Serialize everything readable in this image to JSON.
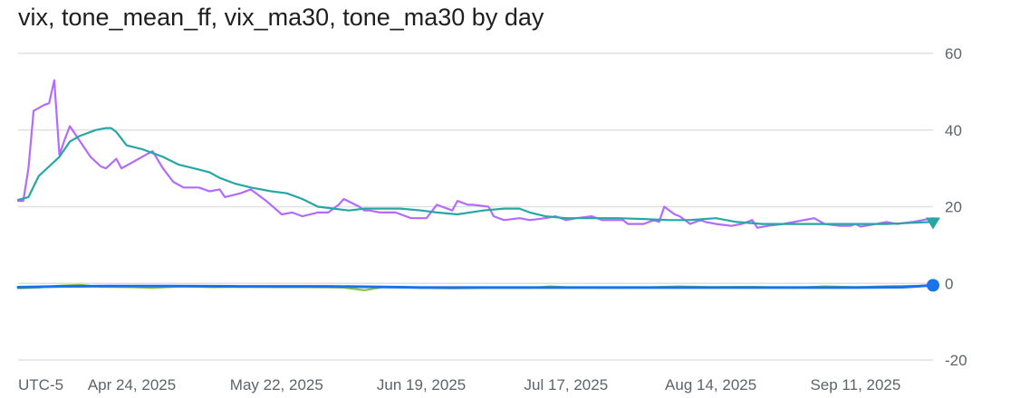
{
  "title": "vix, tone_mean_ff, vix_ma30, tone_ma30 by day",
  "timezone_label": "UTC-5",
  "colors": {
    "vix": "#b36bff",
    "tone_mean_ff": "#8bc34a",
    "vix_ma30": "#26a6a6",
    "tone_ma30": "#1a73e8",
    "grid": "#e0e0e0",
    "tick_text": "#5f6368",
    "title_text": "#1f1f1f"
  },
  "chart_data": {
    "type": "line",
    "title": "vix, tone_mean_ff, vix_ma30, tone_ma30 by day",
    "xlabel": "",
    "ylabel": "",
    "x_range": [
      "2025-04-02",
      "2025-09-26"
    ],
    "ylim": [
      -20,
      60
    ],
    "y_ticks": [
      60,
      40,
      20,
      0,
      -20
    ],
    "y_axis_position": "right",
    "x_ticks": [
      {
        "date": "2025-04-24",
        "label": "Apr 24, 2025"
      },
      {
        "date": "2025-05-22",
        "label": "May 22, 2025"
      },
      {
        "date": "2025-06-19",
        "label": "Jun 19, 2025"
      },
      {
        "date": "2025-07-17",
        "label": "Jul 17, 2025"
      },
      {
        "date": "2025-08-14",
        "label": "Aug 14, 2025"
      },
      {
        "date": "2025-09-11",
        "label": "Sep 11, 2025"
      }
    ],
    "grid": true,
    "legend": "none",
    "series": [
      {
        "name": "vix",
        "color": "#b36bff",
        "end_marker": "none",
        "points": [
          [
            "2025-04-02",
            21.5
          ],
          [
            "2025-04-03",
            21.5
          ],
          [
            "2025-04-04",
            30.0
          ],
          [
            "2025-04-05",
            45.0
          ],
          [
            "2025-04-07",
            46.5
          ],
          [
            "2025-04-08",
            47.0
          ],
          [
            "2025-04-09",
            53.0
          ],
          [
            "2025-04-10",
            33.5
          ],
          [
            "2025-04-11",
            37.5
          ],
          [
            "2025-04-12",
            41.0
          ],
          [
            "2025-04-14",
            37.0
          ],
          [
            "2025-04-16",
            33.0
          ],
          [
            "2025-04-18",
            30.5
          ],
          [
            "2025-04-19",
            30.0
          ],
          [
            "2025-04-21",
            32.5
          ],
          [
            "2025-04-22",
            30.0
          ],
          [
            "2025-04-24",
            31.5
          ],
          [
            "2025-04-28",
            34.5
          ],
          [
            "2025-04-30",
            30.0
          ],
          [
            "2025-05-02",
            26.5
          ],
          [
            "2025-05-04",
            25.0
          ],
          [
            "2025-05-07",
            25.0
          ],
          [
            "2025-05-09",
            24.0
          ],
          [
            "2025-05-11",
            24.5
          ],
          [
            "2025-05-12",
            22.5
          ],
          [
            "2025-05-15",
            23.5
          ],
          [
            "2025-05-17",
            24.5
          ],
          [
            "2025-05-20",
            21.5
          ],
          [
            "2025-05-23",
            18.0
          ],
          [
            "2025-05-25",
            18.5
          ],
          [
            "2025-05-27",
            17.5
          ],
          [
            "2025-05-30",
            18.5
          ],
          [
            "2025-06-01",
            18.5
          ],
          [
            "2025-06-02",
            19.5
          ],
          [
            "2025-06-03",
            20.5
          ],
          [
            "2025-06-04",
            22.0
          ],
          [
            "2025-06-07",
            20.0
          ],
          [
            "2025-06-08",
            19.0
          ],
          [
            "2025-06-09",
            19.0
          ],
          [
            "2025-06-11",
            18.5
          ],
          [
            "2025-06-14",
            18.5
          ],
          [
            "2025-06-16",
            17.5
          ],
          [
            "2025-06-17",
            17.0
          ],
          [
            "2025-06-20",
            17.0
          ],
          [
            "2025-06-22",
            20.5
          ],
          [
            "2025-06-23",
            20.0
          ],
          [
            "2025-06-25",
            19.0
          ],
          [
            "2025-06-26",
            21.5
          ],
          [
            "2025-06-28",
            20.5
          ],
          [
            "2025-06-29",
            20.5
          ],
          [
            "2025-07-02",
            20.0
          ],
          [
            "2025-07-03",
            17.5
          ],
          [
            "2025-07-05",
            16.5
          ],
          [
            "2025-07-08",
            17.0
          ],
          [
            "2025-07-10",
            16.5
          ],
          [
            "2025-07-13",
            17.0
          ],
          [
            "2025-07-15",
            17.5
          ],
          [
            "2025-07-17",
            16.5
          ],
          [
            "2025-07-19",
            17.0
          ],
          [
            "2025-07-22",
            17.5
          ],
          [
            "2025-07-24",
            16.5
          ],
          [
            "2025-07-28",
            16.5
          ],
          [
            "2025-07-29",
            15.5
          ],
          [
            "2025-08-01",
            15.5
          ],
          [
            "2025-08-03",
            16.5
          ],
          [
            "2025-08-04",
            16.0
          ],
          [
            "2025-08-05",
            20.0
          ],
          [
            "2025-08-07",
            18.0
          ],
          [
            "2025-08-08",
            17.5
          ],
          [
            "2025-08-10",
            15.5
          ],
          [
            "2025-08-12",
            16.5
          ],
          [
            "2025-08-13",
            16.0
          ],
          [
            "2025-08-15",
            15.5
          ],
          [
            "2025-08-18",
            15.0
          ],
          [
            "2025-08-20",
            15.5
          ],
          [
            "2025-08-22",
            16.5
          ],
          [
            "2025-08-23",
            14.5
          ],
          [
            "2025-08-25",
            15.0
          ],
          [
            "2025-08-28",
            15.5
          ],
          [
            "2025-08-30",
            16.0
          ],
          [
            "2025-09-01",
            16.5
          ],
          [
            "2025-09-03",
            17.0
          ],
          [
            "2025-09-05",
            15.5
          ],
          [
            "2025-09-08",
            15.0
          ],
          [
            "2025-09-10",
            15.0
          ],
          [
            "2025-09-11",
            15.5
          ],
          [
            "2025-09-12",
            14.8
          ],
          [
            "2025-09-15",
            15.5
          ],
          [
            "2025-09-17",
            16.0
          ],
          [
            "2025-09-19",
            15.5
          ],
          [
            "2025-09-22",
            16.0
          ],
          [
            "2025-09-24",
            16.5
          ],
          [
            "2025-09-26",
            17.0
          ]
        ]
      },
      {
        "name": "tone_mean_ff",
        "color": "#8bc34a",
        "end_marker": "none",
        "points": [
          [
            "2025-04-02",
            -1.3
          ],
          [
            "2025-04-06",
            -1.1
          ],
          [
            "2025-04-10",
            -0.6
          ],
          [
            "2025-04-14",
            -0.4
          ],
          [
            "2025-04-18",
            -0.9
          ],
          [
            "2025-04-24",
            -1.0
          ],
          [
            "2025-04-28",
            -1.2
          ],
          [
            "2025-05-04",
            -0.8
          ],
          [
            "2025-05-10",
            -1.0
          ],
          [
            "2025-05-16",
            -0.9
          ],
          [
            "2025-05-22",
            -1.0
          ],
          [
            "2025-05-28",
            -1.0
          ],
          [
            "2025-06-04",
            -1.1
          ],
          [
            "2025-06-08",
            -1.8
          ],
          [
            "2025-06-12",
            -0.9
          ],
          [
            "2025-06-19",
            -1.2
          ],
          [
            "2025-06-25",
            -1.3
          ],
          [
            "2025-07-02",
            -1.2
          ],
          [
            "2025-07-10",
            -1.2
          ],
          [
            "2025-07-14",
            -0.8
          ],
          [
            "2025-07-17",
            -1.0
          ],
          [
            "2025-07-25",
            -1.2
          ],
          [
            "2025-08-01",
            -1.1
          ],
          [
            "2025-08-08",
            -0.8
          ],
          [
            "2025-08-14",
            -1.0
          ],
          [
            "2025-08-22",
            -0.9
          ],
          [
            "2025-08-30",
            -1.2
          ],
          [
            "2025-09-05",
            -0.8
          ],
          [
            "2025-09-11",
            -1.0
          ],
          [
            "2025-09-18",
            -0.7
          ],
          [
            "2025-09-26",
            -0.6
          ]
        ]
      },
      {
        "name": "vix_ma30",
        "color": "#26a6a6",
        "end_marker": "triangle-down",
        "points": [
          [
            "2025-04-02",
            21.8
          ],
          [
            "2025-04-04",
            22.5
          ],
          [
            "2025-04-06",
            28.0
          ],
          [
            "2025-04-08",
            30.5
          ],
          [
            "2025-04-10",
            33.0
          ],
          [
            "2025-04-11",
            35.0
          ],
          [
            "2025-04-12",
            37.0
          ],
          [
            "2025-04-14",
            38.5
          ],
          [
            "2025-04-17",
            40.0
          ],
          [
            "2025-04-19",
            40.5
          ],
          [
            "2025-04-20",
            40.5
          ],
          [
            "2025-04-21",
            39.5
          ],
          [
            "2025-04-23",
            36.0
          ],
          [
            "2025-04-26",
            35.0
          ],
          [
            "2025-04-28",
            34.0
          ],
          [
            "2025-04-30",
            33.0
          ],
          [
            "2025-05-03",
            31.0
          ],
          [
            "2025-05-06",
            30.0
          ],
          [
            "2025-05-09",
            29.0
          ],
          [
            "2025-05-11",
            27.5
          ],
          [
            "2025-05-14",
            26.0
          ],
          [
            "2025-05-17",
            25.0
          ],
          [
            "2025-05-21",
            24.0
          ],
          [
            "2025-05-24",
            23.5
          ],
          [
            "2025-05-27",
            22.0
          ],
          [
            "2025-05-30",
            20.0
          ],
          [
            "2025-06-02",
            19.5
          ],
          [
            "2025-06-05",
            19.0
          ],
          [
            "2025-06-08",
            19.5
          ],
          [
            "2025-06-11",
            19.5
          ],
          [
            "2025-06-15",
            19.5
          ],
          [
            "2025-06-19",
            19.0
          ],
          [
            "2025-06-22",
            18.5
          ],
          [
            "2025-06-26",
            18.0
          ],
          [
            "2025-07-01",
            19.0
          ],
          [
            "2025-07-05",
            19.5
          ],
          [
            "2025-07-08",
            19.5
          ],
          [
            "2025-07-10",
            18.5
          ],
          [
            "2025-07-13",
            17.5
          ],
          [
            "2025-07-17",
            17.0
          ],
          [
            "2025-07-22",
            17.0
          ],
          [
            "2025-07-27",
            17.0
          ],
          [
            "2025-08-01",
            16.8
          ],
          [
            "2025-08-06",
            16.5
          ],
          [
            "2025-08-10",
            16.5
          ],
          [
            "2025-08-15",
            17.0
          ],
          [
            "2025-08-19",
            16.0
          ],
          [
            "2025-08-24",
            15.5
          ],
          [
            "2025-08-30",
            15.5
          ],
          [
            "2025-09-05",
            15.5
          ],
          [
            "2025-09-11",
            15.5
          ],
          [
            "2025-09-17",
            15.5
          ],
          [
            "2025-09-22",
            15.8
          ],
          [
            "2025-09-26",
            16.0
          ]
        ]
      },
      {
        "name": "tone_ma30",
        "color": "#1a73e8",
        "end_marker": "circle",
        "points": [
          [
            "2025-04-02",
            -1.0
          ],
          [
            "2025-04-10",
            -0.8
          ],
          [
            "2025-04-20",
            -0.7
          ],
          [
            "2025-05-01",
            -0.7
          ],
          [
            "2025-05-15",
            -0.8
          ],
          [
            "2025-06-01",
            -0.8
          ],
          [
            "2025-06-15",
            -1.0
          ],
          [
            "2025-06-19",
            -1.1
          ],
          [
            "2025-07-01",
            -1.1
          ],
          [
            "2025-07-17",
            -1.1
          ],
          [
            "2025-08-01",
            -1.1
          ],
          [
            "2025-08-14",
            -1.1
          ],
          [
            "2025-09-01",
            -1.1
          ],
          [
            "2025-09-11",
            -1.1
          ],
          [
            "2025-09-20",
            -1.0
          ],
          [
            "2025-09-26",
            -0.5
          ]
        ]
      }
    ]
  }
}
